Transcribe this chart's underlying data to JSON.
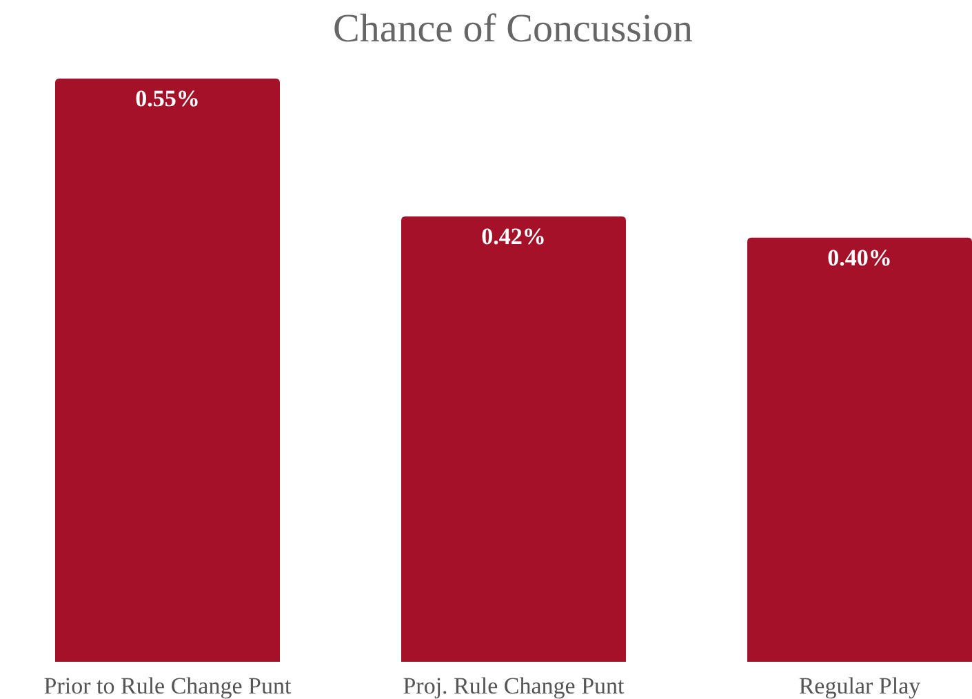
{
  "chart_data": {
    "type": "bar",
    "title": "Chance of Concussion",
    "categories": [
      "Prior to Rule Change Punt",
      "Proj. Rule Change Punt",
      "Regular Play"
    ],
    "values": [
      0.55,
      0.42,
      0.4
    ],
    "value_labels": [
      "0.55%",
      "0.42%",
      "0.40%"
    ],
    "color": "#a51128"
  }
}
